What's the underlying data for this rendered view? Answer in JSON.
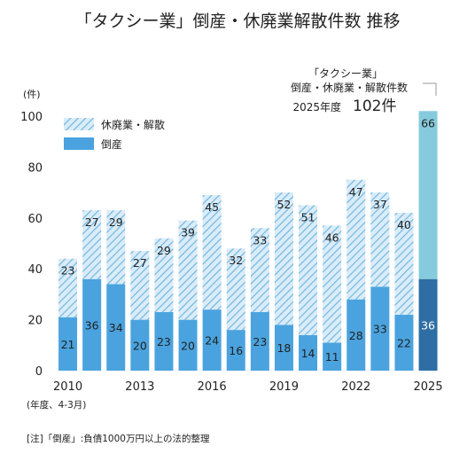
{
  "chart_data": {
    "type": "bar",
    "title": "「タクシー業」倒産・休廃業解散件数 推移",
    "y_unit": "(件)",
    "x_note": "(年度、4-3月)",
    "footnote": "[注]「倒産」:負債1000万円以上の法的整理",
    "ylim": [
      0,
      100
    ],
    "yticks": [
      0,
      20,
      40,
      60,
      80,
      100
    ],
    "categories": [
      "2010",
      "2011",
      "2012",
      "2013",
      "2014",
      "2015",
      "2016",
      "2017",
      "2018",
      "2019",
      "2020",
      "2021",
      "2022",
      "2023",
      "2024",
      "2025"
    ],
    "x_tick_labels": [
      "2010",
      "2013",
      "2016",
      "2019",
      "2022",
      "2025"
    ],
    "series": [
      {
        "name": "倒産",
        "values": [
          21,
          36,
          34,
          20,
          23,
          20,
          24,
          16,
          23,
          18,
          14,
          11,
          28,
          33,
          22,
          36
        ],
        "color": "#4aa3df"
      },
      {
        "name": "休廃業・解散",
        "values": [
          23,
          27,
          29,
          27,
          29,
          39,
          45,
          32,
          33,
          52,
          51,
          46,
          47,
          37,
          40,
          66
        ],
        "color": "#8fc6ea"
      }
    ],
    "highlight": {
      "category": "2025",
      "bottom_color": "#2f6ea4",
      "top_color": "#86cbdd"
    },
    "annotation": {
      "line1": "「タクシー業」",
      "line2": "倒産・休廃業・解散件数",
      "line3_prefix": "2025年度",
      "line3_value": "102件"
    },
    "legend_placement": "top-left",
    "grid": false
  }
}
